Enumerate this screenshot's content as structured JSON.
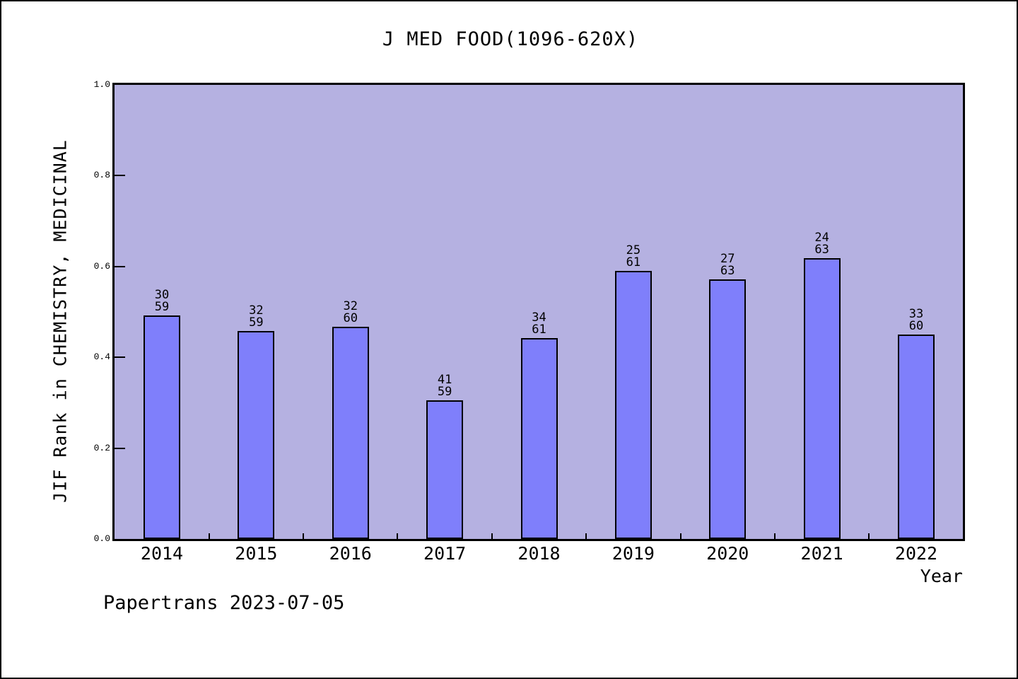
{
  "chart_data": {
    "type": "bar",
    "title": "J MED FOOD(1096-620X)",
    "xlabel": "Year",
    "ylabel": "JIF Rank in CHEMISTRY, MEDICINAL",
    "footer": "Papertrans 2023-07-05",
    "ylim": [
      0.0,
      1.0
    ],
    "yticks": [
      0.0,
      0.2,
      0.4,
      0.6,
      0.8,
      1.0
    ],
    "ytick_labels": [
      "0.0",
      "0.2",
      "0.4",
      "0.6",
      "0.8",
      "1.0"
    ],
    "grid": false,
    "legend_position": "none",
    "categories": [
      "2014",
      "2015",
      "2016",
      "2017",
      "2018",
      "2019",
      "2020",
      "2021",
      "2022"
    ],
    "bars": [
      {
        "year": "2014",
        "rank": 30,
        "total": 59,
        "value": 0.4915
      },
      {
        "year": "2015",
        "rank": 32,
        "total": 59,
        "value": 0.4576
      },
      {
        "year": "2016",
        "rank": 32,
        "total": 60,
        "value": 0.4667
      },
      {
        "year": "2017",
        "rank": 41,
        "total": 59,
        "value": 0.3051
      },
      {
        "year": "2018",
        "rank": 34,
        "total": 61,
        "value": 0.4426
      },
      {
        "year": "2019",
        "rank": 25,
        "total": 61,
        "value": 0.5902
      },
      {
        "year": "2020",
        "rank": 27,
        "total": 63,
        "value": 0.5714
      },
      {
        "year": "2021",
        "rank": 24,
        "total": 63,
        "value": 0.619
      },
      {
        "year": "2022",
        "rank": 33,
        "total": 60,
        "value": 0.45
      }
    ],
    "colors": {
      "plot_background": "#b5b1e1",
      "bar_fill": "#7f7ffb",
      "bar_border": "#000000",
      "axis": "#000000",
      "text": "#000000",
      "page_background": "#ffffff"
    }
  }
}
